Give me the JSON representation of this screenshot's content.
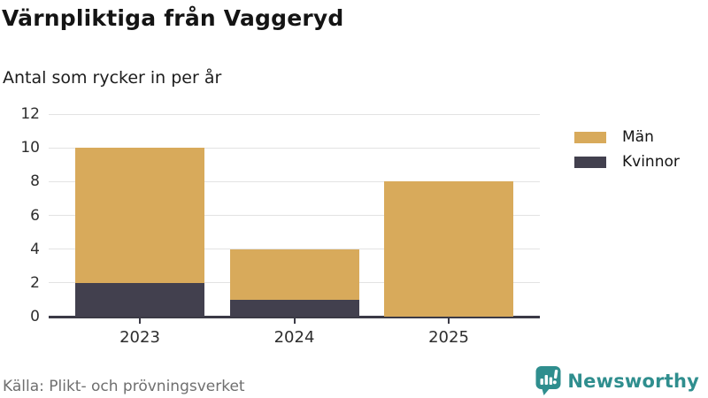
{
  "header": {
    "title": "Värnpliktiga från Vaggeryd",
    "subtitle": "Antal som rycker in per år"
  },
  "chart_data": {
    "type": "bar",
    "stacked": true,
    "title": "Värnpliktiga från Vaggeryd",
    "subtitle": "Antal som rycker in per år",
    "categories": [
      "2023",
      "2024",
      "2025"
    ],
    "series": [
      {
        "name": "Män",
        "color": "#d8aa5b",
        "values": [
          8,
          3,
          8
        ]
      },
      {
        "name": "Kvinnor",
        "color": "#42404e",
        "values": [
          2,
          1,
          0
        ]
      }
    ],
    "stack_totals": [
      10,
      4,
      8
    ],
    "ylim": [
      0,
      12
    ],
    "yticks": [
      0,
      2,
      4,
      6,
      8,
      10,
      12
    ],
    "xlabel": "",
    "ylabel": "",
    "grid": "horizontal",
    "legend_position": "right"
  },
  "colors": {
    "men": "#d8aa5b",
    "women": "#42404e",
    "axis": "#3b3a46",
    "gridline": "#e3e3e3",
    "brand_teal": "#2f8e8e"
  },
  "footer": {
    "source": "Källa: Plikt- och prövningsverket",
    "brand": "Newsworthy",
    "brand_icon": "speech-bubble-bar-chart-icon"
  }
}
